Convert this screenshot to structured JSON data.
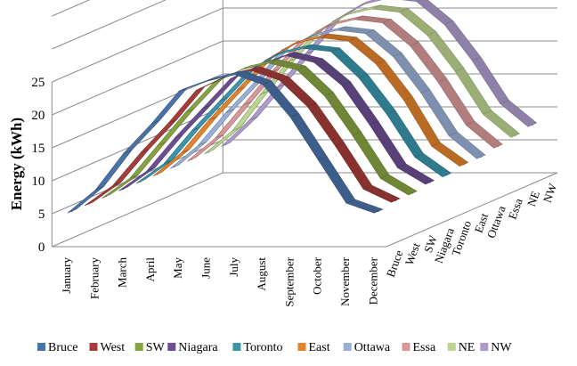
{
  "chart_data": {
    "type": "line",
    "variant": "3d-line",
    "ylabel": "Energy (kWh)",
    "ylim": [
      0,
      25
    ],
    "yticks": [
      0,
      5,
      10,
      15,
      20,
      25
    ],
    "grid": true,
    "legend_position": "bottom",
    "categories": [
      "January",
      "February",
      "March",
      "April",
      "May",
      "June",
      "July",
      "August",
      "September",
      "October",
      "November",
      "December"
    ],
    "series": [
      {
        "name": "Bruce",
        "color": "#4a72a8",
        "values": [
          5.0,
          8.5,
          14.0,
          18.5,
          23.5,
          25.0,
          26.0,
          24.5,
          19.5,
          13.0,
          6.5,
          5.0
        ]
      },
      {
        "name": "West",
        "color": "#a63d3b",
        "values": [
          5.0,
          8.0,
          13.0,
          17.5,
          22.5,
          24.5,
          25.5,
          24.0,
          20.0,
          14.0,
          7.5,
          5.5
        ]
      },
      {
        "name": "SW",
        "color": "#86a341",
        "values": [
          5.0,
          8.0,
          13.0,
          18.0,
          22.5,
          24.5,
          25.5,
          24.5,
          20.5,
          14.5,
          8.0,
          5.5
        ]
      },
      {
        "name": "Niagara",
        "color": "#6b4f92",
        "values": [
          5.0,
          8.0,
          13.0,
          17.5,
          22.0,
          24.0,
          25.5,
          24.5,
          21.0,
          15.0,
          8.5,
          6.0
        ]
      },
      {
        "name": "Toronto",
        "color": "#3a95ad",
        "values": [
          5.0,
          8.0,
          13.0,
          17.5,
          22.0,
          24.5,
          25.5,
          25.0,
          21.0,
          15.5,
          9.0,
          6.0
        ]
      },
      {
        "name": "East",
        "color": "#e2832e",
        "values": [
          5.0,
          8.5,
          13.5,
          18.0,
          22.5,
          25.0,
          26.0,
          25.5,
          22.0,
          16.5,
          9.5,
          6.5
        ]
      },
      {
        "name": "Ottawa",
        "color": "#9aafd6",
        "values": [
          5.0,
          8.5,
          13.5,
          18.0,
          23.0,
          25.0,
          26.0,
          25.5,
          22.0,
          16.5,
          10.0,
          6.5
        ]
      },
      {
        "name": "Essa",
        "color": "#d99898",
        "values": [
          5.0,
          8.5,
          13.5,
          18.5,
          23.0,
          25.5,
          26.5,
          26.0,
          22.5,
          17.0,
          10.5,
          7.0
        ]
      },
      {
        "name": "NE",
        "color": "#bcd48f",
        "values": [
          5.0,
          8.5,
          14.0,
          19.0,
          23.5,
          26.0,
          27.0,
          26.5,
          23.0,
          17.5,
          11.0,
          7.5
        ]
      },
      {
        "name": "NW",
        "color": "#ad9ccb",
        "values": [
          5.0,
          9.0,
          14.0,
          19.0,
          24.0,
          26.5,
          27.5,
          27.0,
          23.5,
          18.0,
          11.5,
          8.0
        ]
      }
    ]
  }
}
